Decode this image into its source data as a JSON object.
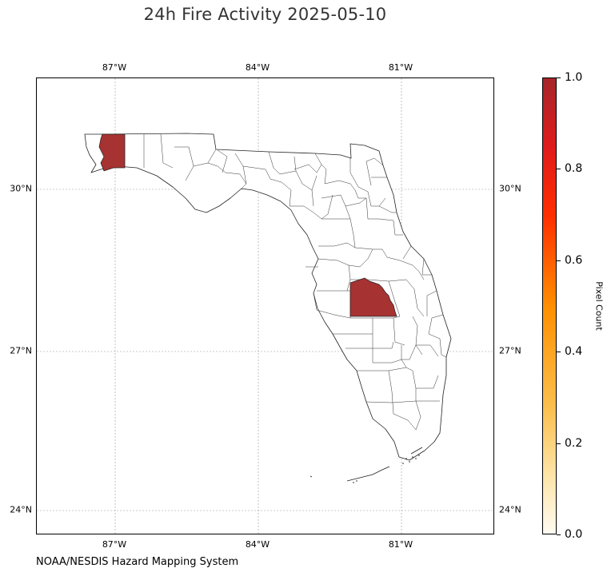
{
  "title": "24h Fire Activity 2025-05-10",
  "source": "NOAA/NESDIS Hazard Mapping System",
  "map": {
    "region": "Florida",
    "lon_ticks": [
      "87°W",
      "84°W",
      "81°W"
    ],
    "lat_ticks": [
      "30°N",
      "27°N",
      "24°N"
    ],
    "lon_values": [
      -87,
      -84,
      -81
    ],
    "lat_values": [
      30,
      27,
      24
    ],
    "highlighted_counties": [
      {
        "county": "Escambia",
        "value": 1.0
      },
      {
        "county": "Osceola",
        "value": 1.0
      }
    ],
    "fill_color": "#a63232",
    "grid": "dashed"
  },
  "colorbar": {
    "label": "Pixel Count",
    "ticks": [
      "0.0",
      "0.2",
      "0.4",
      "0.6",
      "0.8",
      "1.0"
    ],
    "range": [
      0,
      1
    ],
    "colors": [
      "#fffbf1",
      "#fbbf4b",
      "#ff8f00",
      "#ff2d00",
      "#a6262a"
    ]
  }
}
